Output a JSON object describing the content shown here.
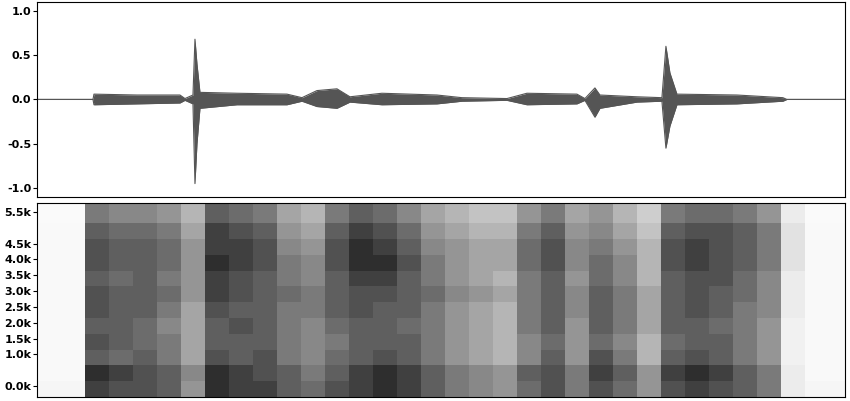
{
  "chart_data": [
    {
      "type": "area",
      "x": [
        0,
        56,
        57,
        100,
        143,
        148,
        156,
        158,
        160,
        163,
        200,
        250,
        265,
        280,
        300,
        313,
        345,
        400,
        425,
        470,
        490,
        540,
        548,
        558,
        563,
        600,
        625,
        629,
        633,
        640,
        700,
        746,
        750,
        808
      ],
      "values": [
        0,
        0,
        0.06,
        0.05,
        0.05,
        0.01,
        0.05,
        0.68,
        0.4,
        0.08,
        0.07,
        0.06,
        0.02,
        0.1,
        0.12,
        0.03,
        0.07,
        0.05,
        0.02,
        0.01,
        0.07,
        0.06,
        0.01,
        0.13,
        0.05,
        0.03,
        0.02,
        0.6,
        0.3,
        0.06,
        0.05,
        0.02,
        0,
        0
      ],
      "low": [
        0,
        0,
        -0.06,
        -0.05,
        -0.04,
        -0.01,
        -0.05,
        -0.95,
        -0.5,
        -0.1,
        -0.06,
        -0.06,
        -0.02,
        -0.08,
        -0.1,
        -0.03,
        -0.06,
        -0.05,
        -0.02,
        -0.01,
        -0.06,
        -0.05,
        -0.01,
        -0.2,
        -0.1,
        -0.03,
        -0.02,
        -0.55,
        -0.3,
        -0.06,
        -0.05,
        -0.02,
        0,
        0
      ],
      "color": "#555555",
      "xlim": [
        0,
        808
      ],
      "ylim": [
        -1.1,
        1.1
      ],
      "yticks": [
        {
          "value": 1.0,
          "label": "1.0"
        },
        {
          "value": 0.5,
          "label": "0.5"
        },
        {
          "value": 0.0,
          "label": "0.0"
        },
        {
          "value": -0.5,
          "label": "-0.5"
        },
        {
          "value": -1.0,
          "label": "-1.0"
        }
      ],
      "tick_labels": "y"
    },
    {
      "type": "heatmap",
      "time_bins": [
        0,
        24,
        48,
        72,
        96,
        120,
        144,
        168,
        192,
        216,
        240,
        264,
        288,
        312,
        336,
        360,
        384,
        408,
        432,
        456,
        480,
        504,
        528,
        552,
        576,
        600,
        624,
        648,
        672,
        696,
        720,
        744,
        768,
        792,
        808
      ],
      "freq_bins": [
        -350,
        150,
        650,
        1150,
        1650,
        2150,
        2650,
        3150,
        3650,
        4150,
        4650,
        5150,
        5790
      ],
      "cells": [
        [
          0.08,
          0.08,
          0.8,
          0.75,
          0.75,
          0.7,
          0.5,
          0.85,
          0.8,
          0.8,
          0.7,
          0.65,
          0.75,
          0.8,
          0.85,
          0.8,
          0.7,
          0.6,
          0.55,
          0.5,
          0.65,
          0.75,
          0.6,
          0.75,
          0.65,
          0.5,
          0.75,
          0.8,
          0.75,
          0.7,
          0.6,
          0.15,
          0.08,
          0.08
        ],
        [
          0.05,
          0.05,
          0.85,
          0.8,
          0.75,
          0.7,
          0.55,
          0.85,
          0.8,
          0.75,
          0.7,
          0.6,
          0.7,
          0.8,
          0.85,
          0.8,
          0.7,
          0.6,
          0.55,
          0.5,
          0.7,
          0.75,
          0.6,
          0.8,
          0.7,
          0.5,
          0.8,
          0.85,
          0.8,
          0.7,
          0.6,
          0.15,
          0.05,
          0.05
        ],
        [
          0.05,
          0.05,
          0.7,
          0.65,
          0.7,
          0.6,
          0.45,
          0.75,
          0.7,
          0.75,
          0.6,
          0.55,
          0.65,
          0.7,
          0.75,
          0.7,
          0.6,
          0.5,
          0.45,
          0.4,
          0.55,
          0.7,
          0.5,
          0.75,
          0.6,
          0.4,
          0.7,
          0.75,
          0.7,
          0.6,
          0.5,
          0.12,
          0.05,
          0.05
        ],
        [
          0.05,
          0.05,
          0.75,
          0.7,
          0.65,
          0.6,
          0.45,
          0.7,
          0.7,
          0.7,
          0.6,
          0.55,
          0.6,
          0.7,
          0.7,
          0.7,
          0.6,
          0.5,
          0.45,
          0.4,
          0.55,
          0.65,
          0.5,
          0.65,
          0.55,
          0.4,
          0.65,
          0.7,
          0.7,
          0.6,
          0.5,
          0.12,
          0.05,
          0.05
        ],
        [
          0.05,
          0.05,
          0.7,
          0.7,
          0.65,
          0.55,
          0.45,
          0.7,
          0.75,
          0.7,
          0.6,
          0.55,
          0.65,
          0.7,
          0.7,
          0.65,
          0.6,
          0.5,
          0.45,
          0.4,
          0.6,
          0.7,
          0.5,
          0.7,
          0.6,
          0.45,
          0.7,
          0.7,
          0.65,
          0.6,
          0.5,
          0.12,
          0.05,
          0.05
        ],
        [
          0.05,
          0.05,
          0.75,
          0.7,
          0.7,
          0.6,
          0.45,
          0.75,
          0.7,
          0.7,
          0.6,
          0.6,
          0.7,
          0.75,
          0.7,
          0.7,
          0.6,
          0.5,
          0.45,
          0.4,
          0.6,
          0.7,
          0.55,
          0.7,
          0.6,
          0.45,
          0.7,
          0.75,
          0.7,
          0.6,
          0.55,
          0.15,
          0.05,
          0.05
        ],
        [
          0.05,
          0.05,
          0.75,
          0.7,
          0.7,
          0.65,
          0.5,
          0.8,
          0.75,
          0.7,
          0.65,
          0.6,
          0.7,
          0.75,
          0.75,
          0.7,
          0.65,
          0.55,
          0.5,
          0.45,
          0.6,
          0.7,
          0.55,
          0.7,
          0.6,
          0.45,
          0.7,
          0.75,
          0.7,
          0.65,
          0.55,
          0.15,
          0.05,
          0.05
        ],
        [
          0.05,
          0.05,
          0.7,
          0.65,
          0.7,
          0.6,
          0.5,
          0.8,
          0.75,
          0.7,
          0.6,
          0.55,
          0.7,
          0.8,
          0.8,
          0.7,
          0.6,
          0.5,
          0.45,
          0.4,
          0.6,
          0.7,
          0.5,
          0.65,
          0.55,
          0.4,
          0.7,
          0.75,
          0.75,
          0.65,
          0.55,
          0.15,
          0.05,
          0.05
        ],
        [
          0.05,
          0.05,
          0.75,
          0.7,
          0.7,
          0.65,
          0.5,
          0.85,
          0.8,
          0.75,
          0.6,
          0.55,
          0.75,
          0.85,
          0.85,
          0.75,
          0.6,
          0.5,
          0.45,
          0.45,
          0.65,
          0.75,
          0.55,
          0.65,
          0.55,
          0.4,
          0.75,
          0.8,
          0.75,
          0.7,
          0.6,
          0.2,
          0.05,
          0.05
        ],
        [
          0.05,
          0.05,
          0.75,
          0.7,
          0.7,
          0.65,
          0.5,
          0.8,
          0.8,
          0.75,
          0.55,
          0.5,
          0.75,
          0.85,
          0.8,
          0.7,
          0.55,
          0.5,
          0.45,
          0.45,
          0.65,
          0.75,
          0.55,
          0.6,
          0.5,
          0.4,
          0.75,
          0.8,
          0.75,
          0.7,
          0.6,
          0.2,
          0.05,
          0.05
        ],
        [
          0.05,
          0.05,
          0.7,
          0.65,
          0.65,
          0.6,
          0.45,
          0.8,
          0.75,
          0.7,
          0.5,
          0.45,
          0.7,
          0.8,
          0.75,
          0.65,
          0.5,
          0.45,
          0.4,
          0.4,
          0.6,
          0.7,
          0.5,
          0.55,
          0.45,
          0.35,
          0.7,
          0.75,
          0.75,
          0.7,
          0.6,
          0.2,
          0.05,
          0.05
        ],
        [
          0.04,
          0.04,
          0.6,
          0.55,
          0.55,
          0.5,
          0.4,
          0.7,
          0.65,
          0.6,
          0.45,
          0.4,
          0.6,
          0.7,
          0.65,
          0.55,
          0.45,
          0.4,
          0.35,
          0.35,
          0.5,
          0.6,
          0.45,
          0.5,
          0.4,
          0.3,
          0.6,
          0.65,
          0.65,
          0.6,
          0.5,
          0.15,
          0.04,
          0.04
        ]
      ],
      "clim": [
        0,
        1
      ],
      "xlim": [
        0,
        808
      ],
      "ylim": [
        -350,
        5790
      ],
      "yticks": [
        {
          "value": 0,
          "label": "0.0k"
        },
        {
          "value": 1000,
          "label": "1.0k"
        },
        {
          "value": 1500,
          "label": "1.5k"
        },
        {
          "value": 2000,
          "label": "2.0k"
        },
        {
          "value": 2500,
          "label": "2.5k"
        },
        {
          "value": 3000,
          "label": "3.0k"
        },
        {
          "value": 3500,
          "label": "3.5k"
        },
        {
          "value": 4000,
          "label": "4.0k"
        },
        {
          "value": 4500,
          "label": "4.5k"
        },
        {
          "value": 5500,
          "label": "5.5k"
        }
      ],
      "tick_labels": "y"
    }
  ]
}
